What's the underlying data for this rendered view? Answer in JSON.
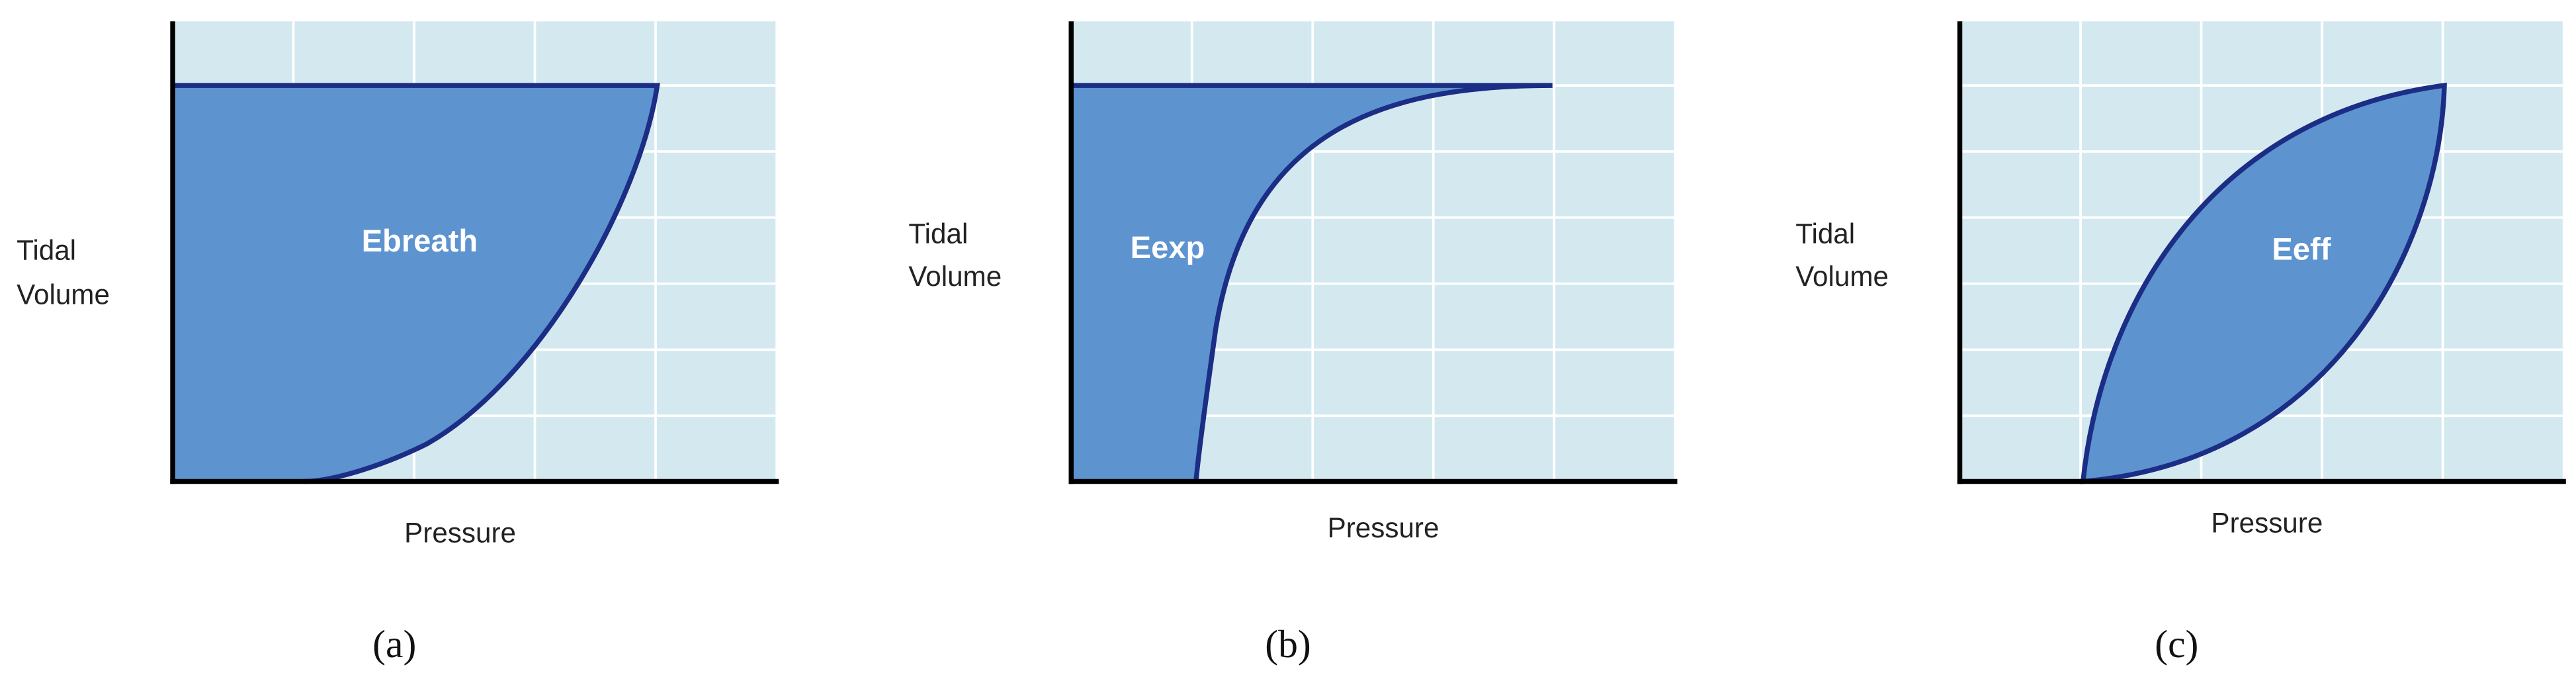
{
  "panels": [
    {
      "y_axis_label": [
        "Tidal",
        "Volume"
      ],
      "x_axis_label": "Pressure",
      "region_label": "Ebreath",
      "caption": "(a)"
    },
    {
      "y_axis_label": [
        "Tidal",
        "Volume"
      ],
      "x_axis_label": "Pressure",
      "region_label": "Eexp",
      "caption": "(b)"
    },
    {
      "y_axis_label": [
        "Tidal",
        "Volume"
      ],
      "x_axis_label": "Pressure",
      "region_label": "Eeff",
      "caption": "(c)"
    }
  ]
}
